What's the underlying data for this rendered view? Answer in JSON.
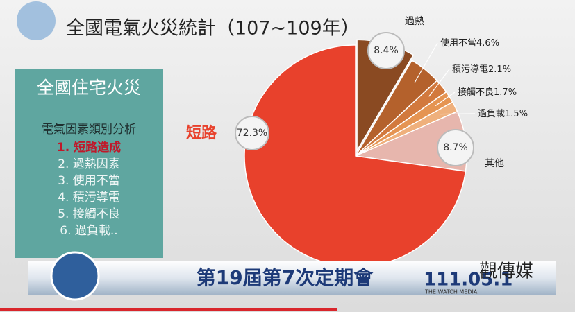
{
  "chart_data": {
    "type": "pie",
    "title": "全國電氣火災統計（107~109年）",
    "categories": [
      "短路",
      "過熱",
      "使用不當",
      "積污導電",
      "接觸不良",
      "過負載",
      "其他"
    ],
    "values": [
      72.3,
      8.4,
      4.6,
      2.1,
      1.7,
      1.5,
      8.7
    ],
    "value_labels": [
      "72.3%",
      "8.4%",
      "4.6%",
      "2.1%",
      "1.7%",
      "1.5%",
      "8.7%"
    ],
    "colors": [
      "#e8412c",
      "#8a4a22",
      "#b4612c",
      "#d2793d",
      "#e59452",
      "#efb07c",
      "#e7b6ad"
    ]
  },
  "panel": {
    "title": "全國住宅火災",
    "subtitle": "電氣因素類別分析",
    "items": [
      "1. 短路造成",
      "2. 過熱因素",
      "3. 使用不當",
      "4. 積污導電",
      "5. 接觸不良",
      "6. 過負載.."
    ]
  },
  "banner": {
    "text": "第19屆第7次定期會",
    "date": "111.05.1"
  },
  "logo": {
    "name": "觀傳媒",
    "tagline": "THE WATCH MEDIA"
  }
}
